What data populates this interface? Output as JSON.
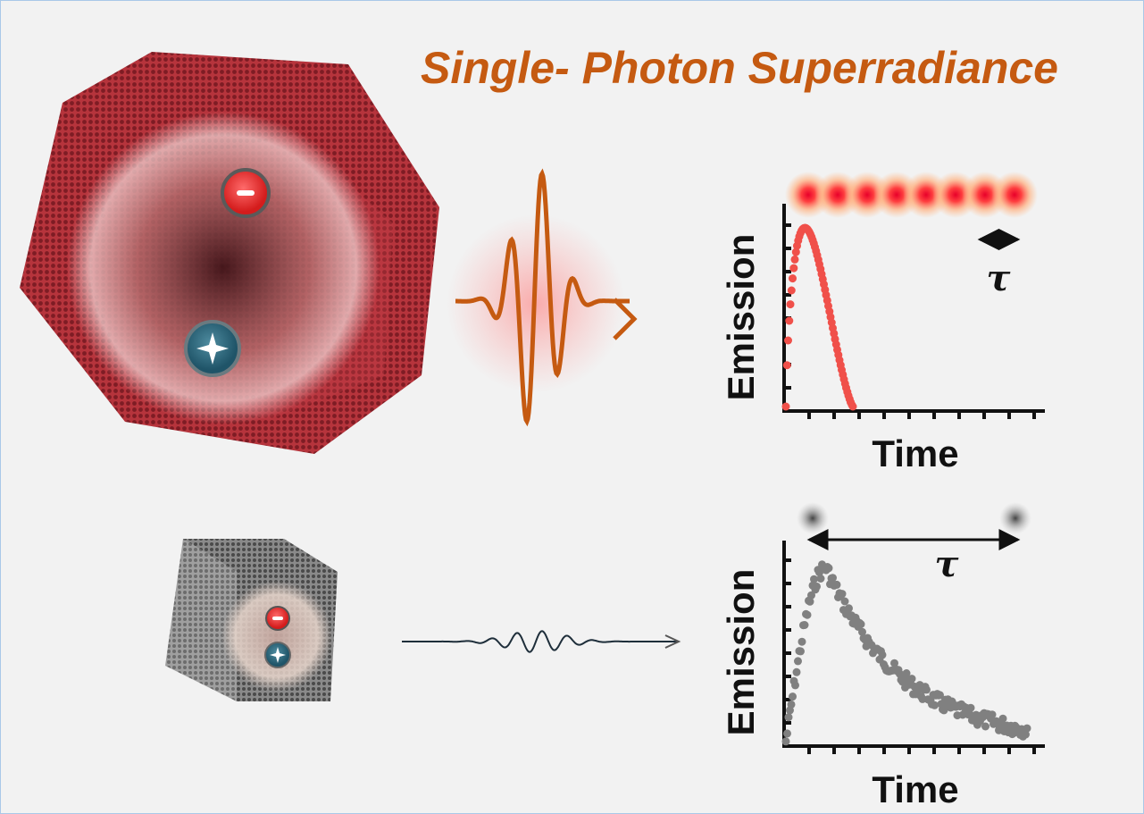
{
  "title": "Single- Photon Superradiance",
  "panels": [
    {
      "y_label": "Emission",
      "x_label": "Time",
      "tau": "τ"
    },
    {
      "y_label": "Emission",
      "x_label": "Time",
      "tau": "τ"
    }
  ]
}
